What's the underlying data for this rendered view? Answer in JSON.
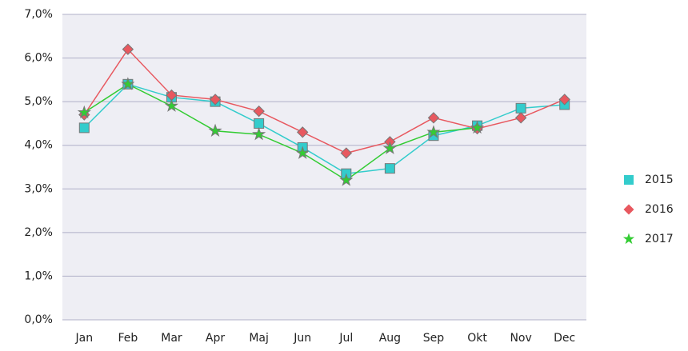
{
  "chart_data": {
    "type": "line",
    "categories": [
      "Jan",
      "Feb",
      "Mar",
      "Apr",
      "Maj",
      "Jun",
      "Jul",
      "Aug",
      "Sep",
      "Okt",
      "Nov",
      "Dec"
    ],
    "series": [
      {
        "name": "2015",
        "color": "#33cccc",
        "marker": "square",
        "values": [
          4.4,
          5.4,
          5.1,
          5.0,
          4.5,
          3.95,
          3.35,
          3.47,
          4.22,
          4.45,
          4.85,
          4.93
        ]
      },
      {
        "name": "2016",
        "color": "#e8585f",
        "marker": "diamond",
        "values": [
          4.7,
          6.2,
          5.15,
          5.05,
          4.78,
          4.3,
          3.82,
          4.08,
          4.63,
          4.38,
          4.63,
          5.05
        ]
      },
      {
        "name": "2017",
        "color": "#33cc33",
        "marker": "star",
        "values": [
          4.75,
          5.4,
          4.9,
          4.33,
          4.25,
          3.82,
          3.2,
          3.93,
          4.3,
          4.4,
          null,
          null
        ]
      }
    ],
    "ylim": [
      0,
      7
    ],
    "yticks": [
      {
        "value": 0,
        "label": "0,0%"
      },
      {
        "value": 1,
        "label": "1,0%"
      },
      {
        "value": 2,
        "label": "2,0%"
      },
      {
        "value": 3,
        "label": "3,0%"
      },
      {
        "value": 4,
        "label": "4,0%"
      },
      {
        "value": 5,
        "label": "5,0%"
      },
      {
        "value": 6,
        "label": "6,0%"
      },
      {
        "value": 7,
        "label": "7,0%"
      }
    ],
    "grid": true,
    "legend": "right"
  }
}
